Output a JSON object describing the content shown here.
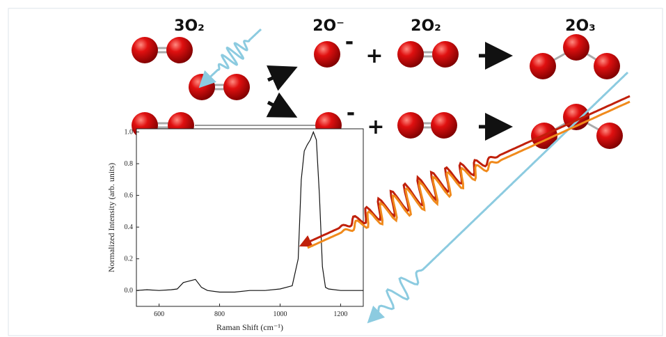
{
  "labels": {
    "reactant": "3O₂",
    "product_ion": "2O⁻",
    "product_o2": "2O₂",
    "product_ozone": "2O₃",
    "charge_top": "-",
    "plus_top": "+",
    "charge_bottom": "-",
    "plus_bottom": "+"
  },
  "chart_data": {
    "type": "line",
    "ylabel": "Normalized Intensity (arb. units)",
    "xlabel": "Raman Shift (cm⁻¹)",
    "x": [
      525,
      560,
      600,
      640,
      660,
      680,
      700,
      720,
      740,
      760,
      800,
      850,
      900,
      950,
      1000,
      1040,
      1060,
      1070,
      1080,
      1090,
      1100,
      1110,
      1120,
      1130,
      1140,
      1150,
      1160,
      1200,
      1250,
      1275
    ],
    "values": [
      0,
      0.005,
      0,
      0.005,
      0.01,
      0.05,
      0.06,
      0.07,
      0.02,
      0,
      -0.01,
      -0.01,
      0,
      0,
      0.01,
      0.03,
      0.2,
      0.7,
      0.88,
      0.92,
      0.95,
      1.0,
      0.95,
      0.6,
      0.15,
      0.02,
      0.01,
      0,
      0,
      0
    ],
    "color": "#111111",
    "xlim": [
      525,
      1275
    ],
    "ylim": [
      -0.1,
      1.02
    ],
    "xticks": [
      600,
      800,
      1000,
      1200
    ],
    "yticks": [
      {
        "value": 0,
        "label": "0.0"
      },
      {
        "value": 0.2,
        "label": "0.2"
      },
      {
        "value": 0.4,
        "label": "0.4"
      },
      {
        "value": 0.6,
        "label": "0.6"
      },
      {
        "value": 0.8,
        "label": "0.8"
      },
      {
        "value": 1,
        "label": "1.0"
      }
    ]
  }
}
